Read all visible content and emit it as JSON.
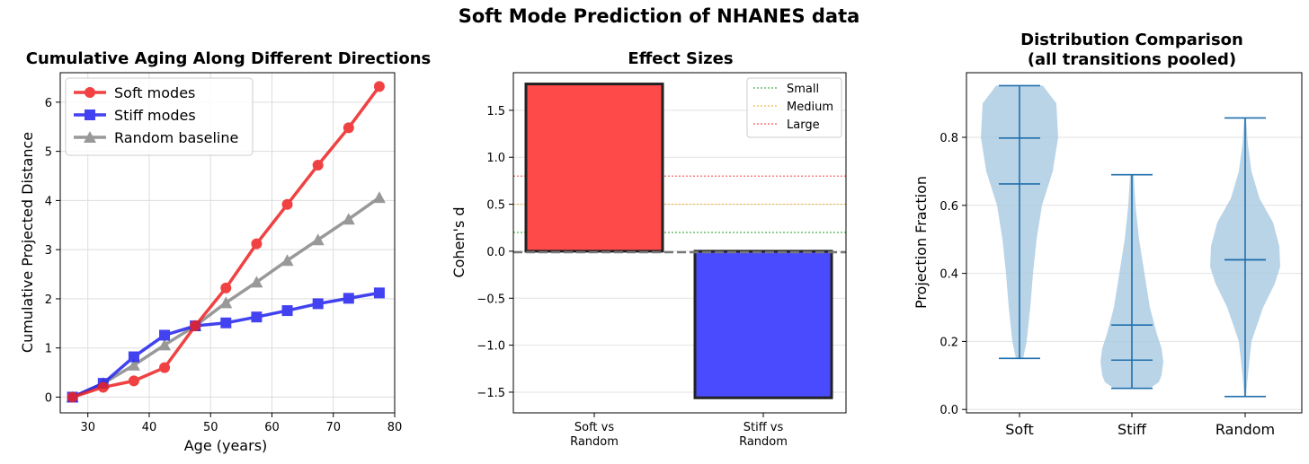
{
  "suptitle": "Soft Mode Prediction of NHANES data",
  "chart_data": [
    {
      "type": "line",
      "title": "Cumulative Aging Along Different Directions",
      "xlabel": "Age (years)",
      "ylabel": "Cumulative Projected Distance",
      "xlim": [
        25.5,
        80
      ],
      "ylim": [
        -0.32,
        6.6
      ],
      "xticks": [
        "30",
        "40",
        "50",
        "60",
        "70",
        "80"
      ],
      "yticks": [
        "0",
        "1",
        "2",
        "3",
        "4",
        "5",
        "6"
      ],
      "grid": true,
      "legend_position": "top-left",
      "x": [
        27.5,
        32.5,
        37.5,
        42.5,
        47.5,
        52.5,
        57.5,
        62.5,
        67.5,
        72.5,
        77.5
      ],
      "series": [
        {
          "name": "Soft modes",
          "color": "#ee2222",
          "marker": "circle",
          "values": [
            0,
            0.2,
            0.33,
            0.6,
            1.45,
            2.22,
            3.12,
            3.92,
            4.72,
            5.48,
            6.32
          ]
        },
        {
          "name": "Stiff modes",
          "color": "#2222ee",
          "marker": "square",
          "values": [
            0,
            0.28,
            0.82,
            1.26,
            1.45,
            1.51,
            1.63,
            1.76,
            1.9,
            2.01,
            2.12
          ]
        },
        {
          "name": "Random baseline",
          "color": "#888888",
          "marker": "triangle",
          "values": [
            0,
            0.28,
            0.65,
            1.06,
            1.45,
            1.92,
            2.34,
            2.78,
            3.2,
            3.62,
            4.06
          ]
        }
      ]
    },
    {
      "type": "bar",
      "title": "Effect Sizes",
      "ylabel": "Cohen's d",
      "ylim": [
        -1.72,
        1.9
      ],
      "yticks": [
        "1.5",
        "1.0",
        "0.5",
        "0.0",
        "−0.5",
        "−1.0",
        "−1.5"
      ],
      "ytick_values": [
        1.5,
        1.0,
        0.5,
        0.0,
        -0.5,
        -1.0,
        -1.5
      ],
      "categories": [
        [
          "Soft vs",
          "Random"
        ],
        [
          "Stiff vs",
          "Random"
        ]
      ],
      "values": [
        1.78,
        -1.56
      ],
      "bar_colors": [
        "#ff4a4a",
        "#4a4aff"
      ],
      "grid": true,
      "legend_position": "top-right",
      "reference_lines": [
        {
          "name": "Small",
          "value": 0.2,
          "color": "#4caf50"
        },
        {
          "name": "Medium",
          "value": 0.5,
          "color": "#f0b84a"
        },
        {
          "name": "Large",
          "value": 0.8,
          "color": "#ff5555"
        }
      ]
    },
    {
      "type": "violin",
      "title": [
        "Distribution Comparison",
        "(all transitions pooled)"
      ],
      "ylabel": "Projection Fraction",
      "ylim": [
        -0.01,
        0.99
      ],
      "yticks": [
        "0.0",
        "0.2",
        "0.4",
        "0.6",
        "0.8"
      ],
      "ytick_values": [
        0.0,
        0.2,
        0.4,
        0.6,
        0.8
      ],
      "categories": [
        "Soft",
        "Stiff",
        "Random"
      ],
      "grid": true,
      "violin_color": "#a9c9e1",
      "line_color": "#1f6fad",
      "groups": [
        {
          "name": "Soft",
          "min": 0.15,
          "max": 0.952,
          "median": 0.663,
          "mean": 0.798
        },
        {
          "name": "Stiff",
          "min": 0.062,
          "max": 0.69,
          "median": 0.145,
          "mean": 0.248
        },
        {
          "name": "Random",
          "min": 0.038,
          "max": 0.857,
          "median": 0.44,
          "mean": 0.44
        }
      ]
    }
  ]
}
